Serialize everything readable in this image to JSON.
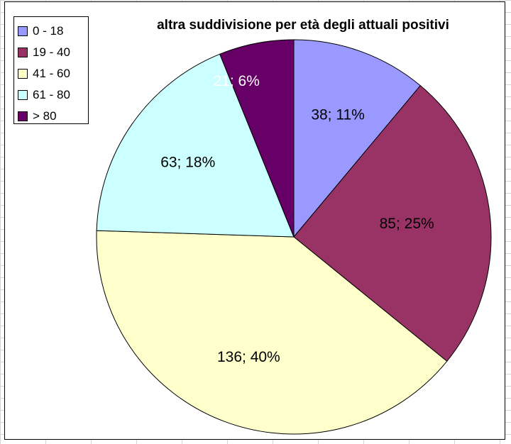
{
  "chart_data": {
    "type": "pie",
    "title": "altra suddivisione per età degli attuali positivi",
    "categories": [
      "0 - 18",
      "19 - 40",
      "41 - 60",
      "61 - 80",
      "> 80"
    ],
    "values": [
      38,
      85,
      136,
      63,
      21
    ],
    "data_labels": [
      "38; 11%",
      "85; 25%",
      "136; 40%",
      "63; 18%",
      "21; 6%"
    ],
    "colors": [
      "#9999ff",
      "#993366",
      "#ffffcc",
      "#ccffff",
      "#660066"
    ],
    "label_colors": [
      "#000000",
      "#000000",
      "#000000",
      "#000000",
      "#ffffff"
    ],
    "start_angle_deg": 0,
    "direction": "clockwise",
    "legend_position": "top-left"
  }
}
